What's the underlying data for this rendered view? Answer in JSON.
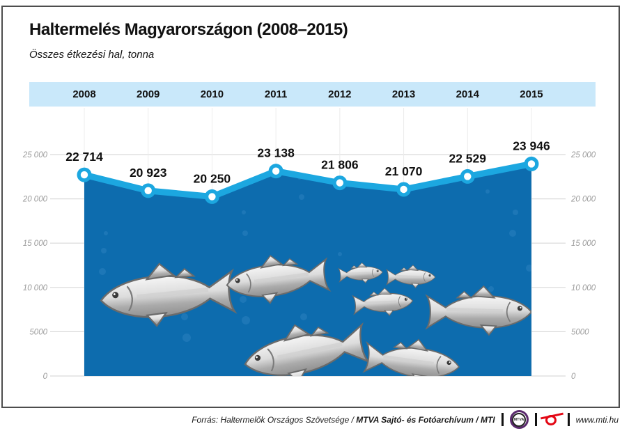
{
  "title": "Haltermelés Magyarországon (2008–2015)",
  "subtitle": "Összes étkezési hal, tonna",
  "chart_data": {
    "type": "area",
    "title": "Haltermelés Magyarországon (2008–2015)",
    "ylabel": "tonna",
    "categories": [
      "2008",
      "2009",
      "2010",
      "2011",
      "2012",
      "2013",
      "2014",
      "2015"
    ],
    "values": [
      22714,
      20923,
      20250,
      23138,
      21806,
      21070,
      22529,
      23946
    ],
    "value_labels": [
      "22 714",
      "20 923",
      "20 250",
      "23 138",
      "21 806",
      "21 070",
      "22 529",
      "23 946"
    ],
    "y_ticks": [
      {
        "value": 25000,
        "label": "25 000"
      },
      {
        "value": 20000,
        "label": "20 000"
      },
      {
        "value": 15000,
        "label": "15 000"
      },
      {
        "value": 10000,
        "label": "10 000"
      },
      {
        "value": 5000,
        "label": "5000"
      },
      {
        "value": 0,
        "label": "0"
      }
    ],
    "ylim": [
      0,
      25000
    ],
    "grid": "horizontal and faint vertical",
    "legend_position": "none",
    "colors": {
      "line": "#1ca7e0",
      "area": "#0d6cae",
      "marker_fill": "#ffffff",
      "marker_ring": "#1ca7e0",
      "band": "#c9e8fa",
      "grid": "#d9d9d9",
      "vgrid": "#ececec",
      "tick_text": "#9a9a9a",
      "value_text": "#111111",
      "bubble": "#2b82bf",
      "fish_outline": "#6b6b6b"
    }
  },
  "footer": {
    "source_prefix": "Forrás: Haltermelők Országos Szövetsége / ",
    "source_bold": "MTVA Sajtó- és Fotóarchívum / MTI",
    "mtva_logo_text": "MTVA",
    "website": "www.mti.hu"
  }
}
